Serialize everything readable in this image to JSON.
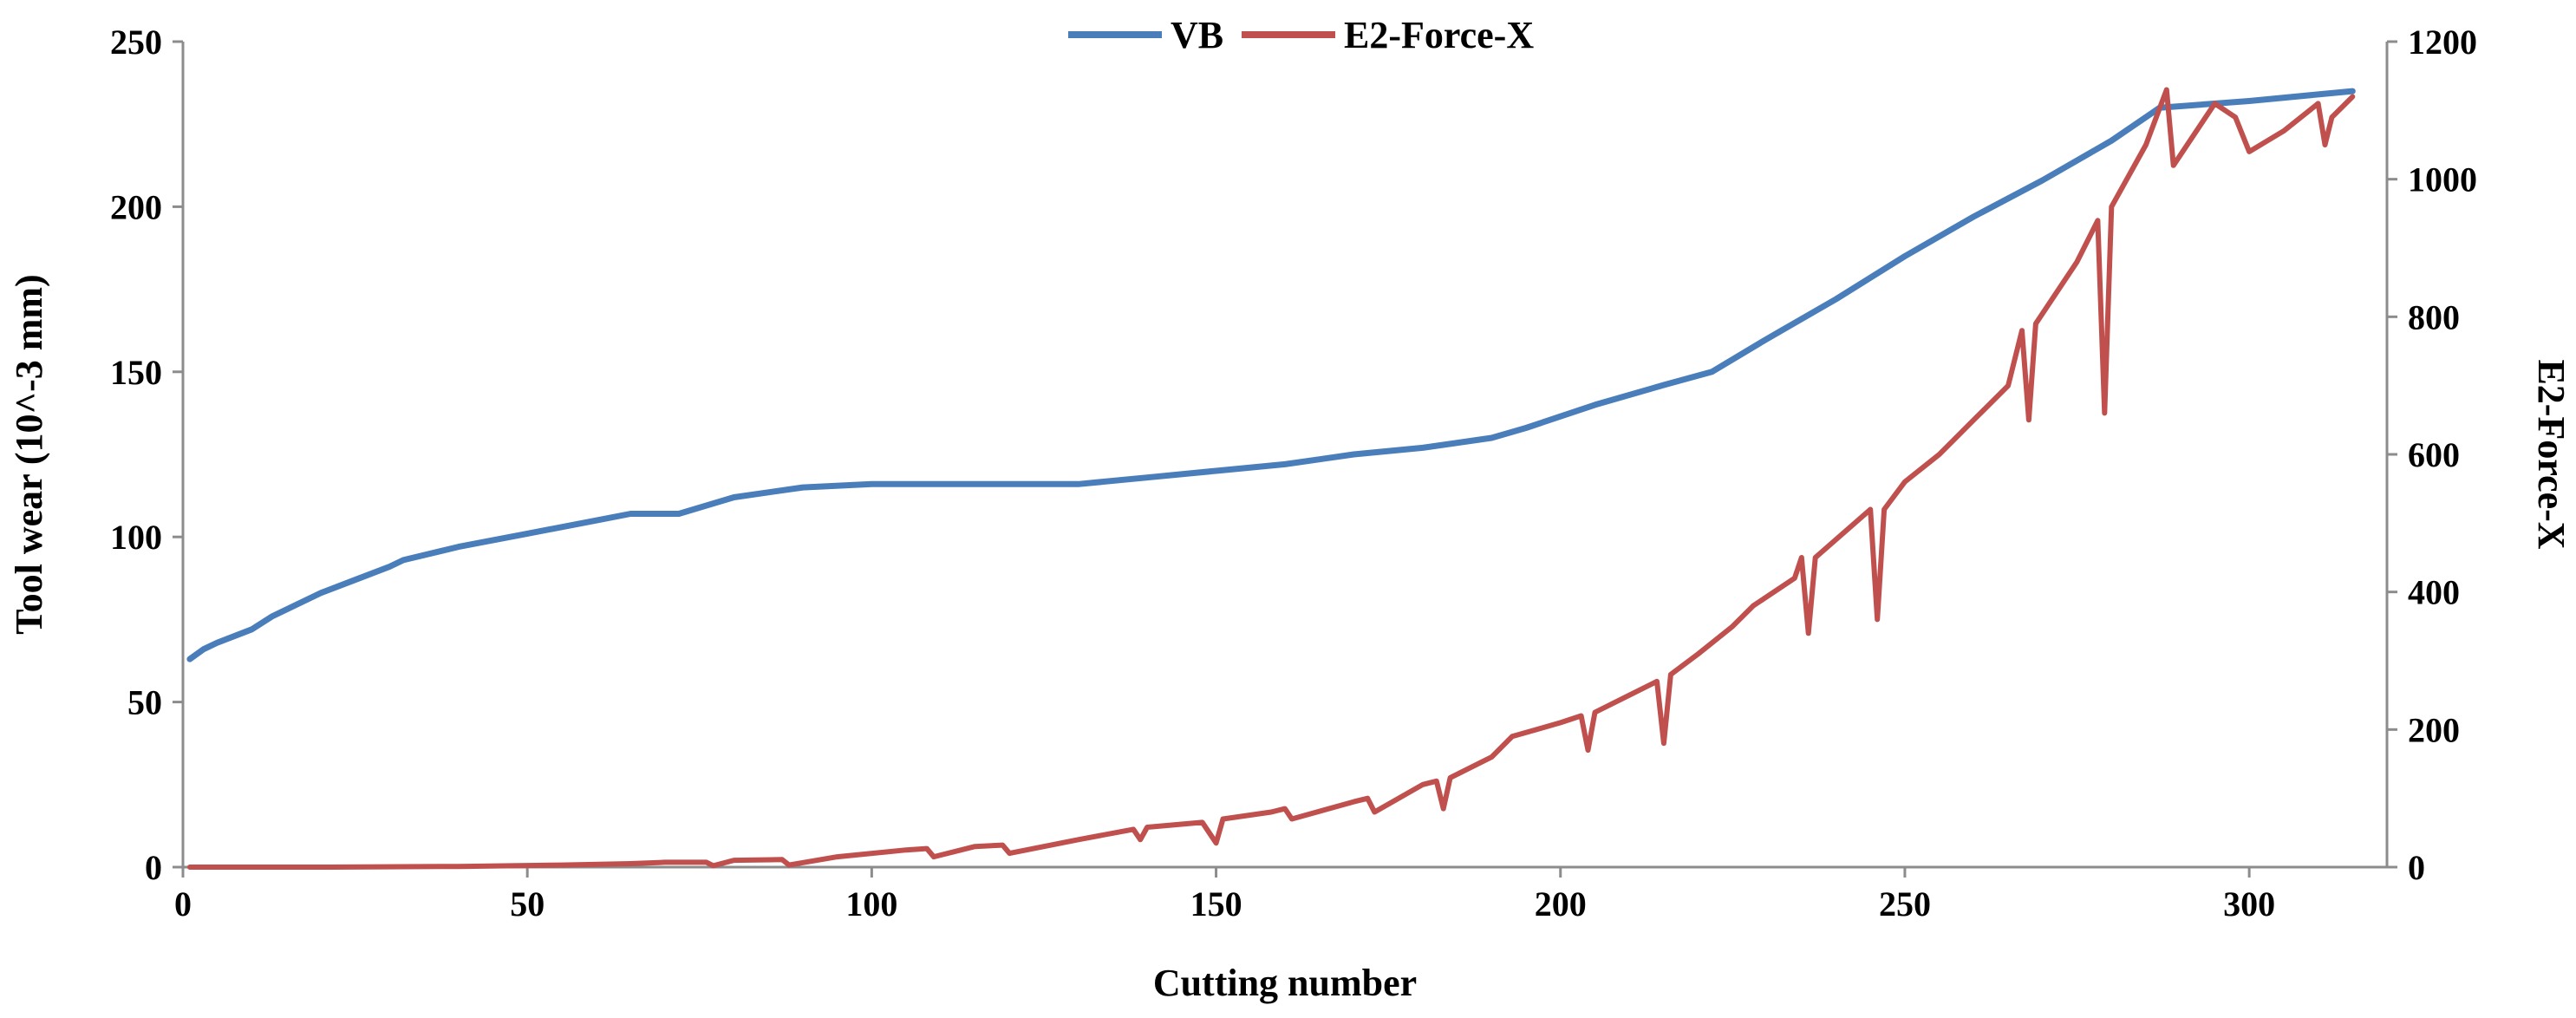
{
  "chart_data": {
    "type": "line",
    "title": "",
    "xlabel": "Cutting number",
    "ylabel": "Tool wear (10^-3 mm)",
    "y2label": "E2-Force-X",
    "xlim": [
      0,
      320
    ],
    "ylim": [
      0,
      250
    ],
    "y2lim": [
      0,
      1200
    ],
    "xticks": [
      0,
      50,
      100,
      150,
      200,
      250,
      300
    ],
    "yticks": [
      0,
      50,
      100,
      150,
      200,
      250
    ],
    "y2ticks": [
      0,
      200,
      400,
      600,
      800,
      1000,
      1200
    ],
    "grid": false,
    "legend_position": "top-center",
    "series": [
      {
        "name": "VB",
        "axis": "left",
        "color": "#4a7ebb",
        "x": [
          1,
          3,
          5,
          10,
          13,
          20,
          25,
          30,
          32,
          40,
          50,
          60,
          65,
          72,
          80,
          90,
          100,
          110,
          120,
          130,
          140,
          150,
          160,
          170,
          180,
          190,
          195,
          205,
          215,
          222,
          230,
          240,
          250,
          260,
          270,
          280,
          287,
          300,
          310,
          315
        ],
        "values": [
          63,
          66,
          68,
          72,
          76,
          83,
          87,
          91,
          93,
          97,
          101,
          105,
          107,
          107,
          112,
          115,
          116,
          116,
          116,
          116,
          118,
          120,
          122,
          125,
          127,
          130,
          133,
          140,
          146,
          150,
          160,
          172,
          185,
          197,
          208,
          220,
          230,
          232,
          234,
          235
        ]
      },
      {
        "name": "E2-Force-X",
        "axis": "right",
        "color": "#c0504d",
        "x": [
          1,
          20,
          40,
          55,
          65,
          70,
          76,
          77,
          80,
          87,
          88,
          95,
          105,
          108,
          109,
          115,
          119,
          120,
          130,
          138,
          139,
          140,
          148,
          150,
          151,
          158,
          160,
          161,
          170,
          172,
          173,
          180,
          182,
          183,
          184,
          190,
          193,
          200,
          203,
          204,
          205,
          210,
          214,
          215,
          216,
          220,
          225,
          228,
          234,
          235,
          236,
          237,
          245,
          246,
          247,
          250,
          255,
          260,
          265,
          267,
          268,
          269,
          275,
          278,
          279,
          280,
          285,
          288,
          289,
          293,
          295,
          298,
          300,
          305,
          310,
          311,
          312,
          315
        ],
        "values": [
          0,
          0,
          1,
          3,
          5,
          7,
          7,
          2,
          10,
          11,
          3,
          15,
          25,
          27,
          15,
          30,
          32,
          20,
          40,
          55,
          40,
          58,
          65,
          35,
          70,
          80,
          85,
          70,
          95,
          100,
          80,
          120,
          125,
          85,
          130,
          160,
          190,
          210,
          220,
          170,
          225,
          250,
          270,
          180,
          280,
          310,
          350,
          380,
          420,
          450,
          340,
          450,
          520,
          360,
          520,
          560,
          600,
          650,
          700,
          780,
          650,
          790,
          880,
          940,
          660,
          960,
          1050,
          1130,
          1020,
          1080,
          1110,
          1090,
          1040,
          1070,
          1110,
          1050,
          1090,
          1120
        ]
      }
    ]
  }
}
